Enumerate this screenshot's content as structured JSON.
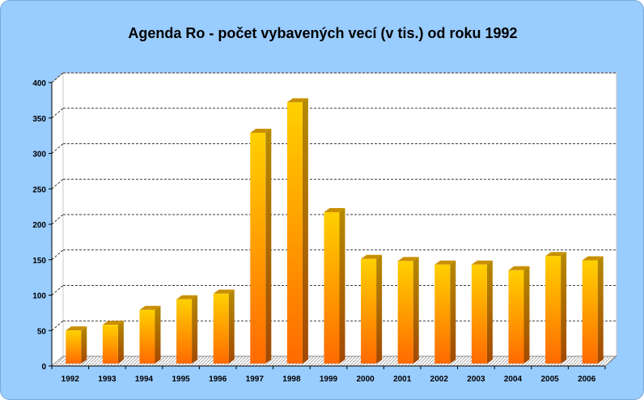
{
  "chart_data": {
    "type": "bar",
    "title": "Agenda Ro - počet vybavených vecí (v tis.) od roku 1992",
    "xlabel": "",
    "ylabel": "",
    "categories": [
      "1992",
      "1993",
      "1994",
      "1995",
      "1996",
      "1997",
      "1998",
      "1999",
      "2000",
      "2001",
      "2002",
      "2003",
      "2004",
      "2005",
      "2006"
    ],
    "values": [
      49,
      57,
      78,
      93,
      101,
      328,
      371,
      216,
      150,
      147,
      142,
      142,
      134,
      154,
      148
    ],
    "ylim": [
      0,
      400
    ],
    "yticks": [
      "0",
      "50",
      "100",
      "150",
      "200",
      "250",
      "300",
      "350",
      "400"
    ],
    "grid": true,
    "legend": "none",
    "style": "3d-gradient"
  },
  "colors": {
    "background": "#99ccff",
    "plot_area": "#ffffff",
    "bar_top": "#ffd000",
    "bar_bottom": "#ff6a00",
    "bar_side": "#b57a00",
    "bar_cap": "#c98f00",
    "gridline": "#000000"
  }
}
